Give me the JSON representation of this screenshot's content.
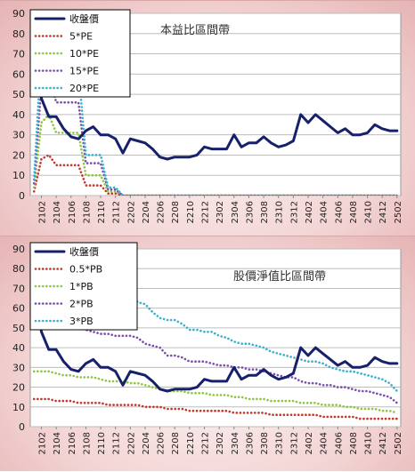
{
  "chart_data": [
    {
      "type": "line",
      "title": "本益比區間帶",
      "ylim": [
        0,
        90
      ],
      "yticks": [
        "0",
        "10",
        "20",
        "30",
        "40",
        "50",
        "60",
        "70",
        "80",
        "90"
      ],
      "x_tick_labels": [
        "2102",
        "2104",
        "2106",
        "2108",
        "2110",
        "2112",
        "2202",
        "2204",
        "2206",
        "2208",
        "2210",
        "2212",
        "2302",
        "2304",
        "2306",
        "2308",
        "2310",
        "2312",
        "2402",
        "2404",
        "2406",
        "2408",
        "2410",
        "2412",
        "2502"
      ],
      "grid": true,
      "legend_position": "top-left",
      "series": [
        {
          "name": "收盤價",
          "color": "#16206b",
          "style": "solid",
          "values": [
            70,
            48,
            39,
            39,
            33,
            29,
            28,
            32,
            34,
            30,
            30,
            28,
            21,
            28,
            27,
            26,
            23,
            19,
            18,
            19,
            19,
            19,
            20,
            24,
            23,
            23,
            23,
            30,
            24,
            26,
            26,
            29,
            26,
            24,
            25,
            27,
            40,
            36,
            40,
            37,
            34,
            31,
            33,
            30,
            30,
            31,
            35,
            33,
            32,
            32
          ]
        },
        {
          "name": "5*PE",
          "color": "#c0392b",
          "style": "dotted",
          "values": [
            2,
            18,
            20,
            15,
            15,
            15,
            15,
            5,
            5,
            5,
            1,
            1,
            0,
            0,
            0,
            0,
            0,
            0,
            0,
            0,
            0,
            0,
            0,
            0,
            0,
            0,
            0,
            0,
            0,
            0,
            0,
            0,
            0,
            0,
            0,
            0,
            0,
            0,
            0,
            0,
            0,
            0,
            0,
            0,
            0,
            0,
            0,
            0,
            0,
            0
          ]
        },
        {
          "name": "10*PE",
          "color": "#8dc63f",
          "style": "dotted",
          "values": [
            4,
            36,
            40,
            31,
            31,
            31,
            31,
            10,
            10,
            10,
            2,
            2,
            0,
            0,
            0,
            0,
            0,
            0,
            0,
            0,
            0,
            0,
            0,
            0,
            0,
            0,
            0,
            0,
            0,
            0,
            0,
            0,
            0,
            0,
            0,
            0,
            0,
            0,
            0,
            0,
            0,
            0,
            0,
            0,
            0,
            0,
            0,
            0,
            0,
            0
          ]
        },
        {
          "name": "15*PE",
          "color": "#7b4fa8",
          "style": "dotted",
          "values": [
            6,
            54,
            60,
            46,
            46,
            46,
            46,
            16,
            16,
            16,
            3,
            3,
            0,
            0,
            0,
            0,
            0,
            0,
            0,
            0,
            0,
            0,
            0,
            0,
            0,
            0,
            0,
            0,
            0,
            0,
            0,
            0,
            0,
            0,
            0,
            0,
            0,
            0,
            0,
            0,
            0,
            0,
            0,
            0,
            0,
            0,
            0,
            0,
            0,
            0
          ]
        },
        {
          "name": "20*PE",
          "color": "#3ab0d0",
          "style": "dotted",
          "values": [
            8,
            72,
            80,
            62,
            62,
            62,
            62,
            20,
            20,
            20,
            4,
            4,
            0,
            0,
            0,
            0,
            0,
            0,
            0,
            0,
            0,
            0,
            0,
            0,
            0,
            0,
            0,
            0,
            0,
            0,
            0,
            0,
            0,
            0,
            0,
            0,
            0,
            0,
            0,
            0,
            0,
            0,
            0,
            0,
            0,
            0,
            0,
            0,
            0,
            0
          ]
        }
      ]
    },
    {
      "type": "line",
      "title": "股價淨值比區間帶",
      "ylim": [
        0,
        90
      ],
      "yticks": [
        "0",
        "10",
        "20",
        "30",
        "40",
        "50",
        "60",
        "70",
        "80",
        "90"
      ],
      "x_tick_labels": [
        "2102",
        "2104",
        "2106",
        "2108",
        "2110",
        "2112",
        "2202",
        "2204",
        "2206",
        "2208",
        "2210",
        "2212",
        "2302",
        "2304",
        "2306",
        "2308",
        "2310",
        "2312",
        "2402",
        "2404",
        "2406",
        "2408",
        "2410",
        "2412",
        "2502"
      ],
      "grid": true,
      "legend_position": "top-left",
      "series": [
        {
          "name": "收盤價",
          "color": "#16206b",
          "style": "solid",
          "values": [
            70,
            48,
            39,
            39,
            33,
            29,
            28,
            32,
            34,
            30,
            30,
            28,
            21,
            28,
            27,
            26,
            23,
            19,
            18,
            19,
            19,
            19,
            20,
            24,
            23,
            23,
            23,
            30,
            24,
            26,
            26,
            29,
            26,
            24,
            25,
            27,
            40,
            36,
            40,
            37,
            34,
            31,
            33,
            30,
            30,
            31,
            35,
            33,
            32,
            32
          ]
        },
        {
          "name": "0.5*PB",
          "color": "#c0392b",
          "style": "dotted",
          "values": [
            14,
            14,
            14,
            13,
            13,
            13,
            12,
            12,
            12,
            12,
            11,
            11,
            11,
            11,
            11,
            10,
            10,
            10,
            9,
            9,
            9,
            8,
            8,
            8,
            8,
            8,
            8,
            7,
            7,
            7,
            7,
            7,
            6,
            6,
            6,
            6,
            6,
            6,
            6,
            5,
            5,
            5,
            5,
            5,
            4,
            4,
            4,
            4,
            4,
            4
          ]
        },
        {
          "name": "1*PB",
          "color": "#8dc63f",
          "style": "dotted",
          "values": [
            28,
            28,
            28,
            27,
            26,
            26,
            25,
            25,
            25,
            24,
            23,
            23,
            23,
            22,
            22,
            21,
            20,
            19,
            18,
            18,
            18,
            17,
            17,
            17,
            16,
            16,
            16,
            15,
            15,
            14,
            14,
            14,
            13,
            13,
            13,
            13,
            12,
            12,
            12,
            11,
            11,
            11,
            10,
            10,
            9,
            9,
            9,
            8,
            8,
            7
          ]
        },
        {
          "name": "2*PB",
          "color": "#7b4fa8",
          "style": "dotted",
          "values": [
            56,
            55,
            54,
            53,
            52,
            51,
            50,
            49,
            48,
            47,
            47,
            46,
            46,
            46,
            45,
            42,
            41,
            40,
            36,
            36,
            35,
            33,
            33,
            33,
            32,
            31,
            31,
            30,
            30,
            29,
            29,
            28,
            27,
            26,
            25,
            25,
            23,
            22,
            22,
            21,
            21,
            20,
            20,
            19,
            18,
            18,
            17,
            16,
            15,
            12
          ]
        },
        {
          "name": "3*PB",
          "color": "#3ab0d0",
          "style": "dotted",
          "values": [
            84,
            82,
            81,
            80,
            78,
            77,
            76,
            74,
            72,
            71,
            70,
            70,
            69,
            67,
            63,
            62,
            58,
            55,
            54,
            54,
            52,
            49,
            49,
            48,
            48,
            46,
            45,
            43,
            42,
            42,
            41,
            40,
            38,
            37,
            36,
            35,
            34,
            33,
            33,
            32,
            30,
            29,
            28,
            28,
            27,
            26,
            25,
            24,
            22,
            18
          ]
        }
      ]
    }
  ]
}
